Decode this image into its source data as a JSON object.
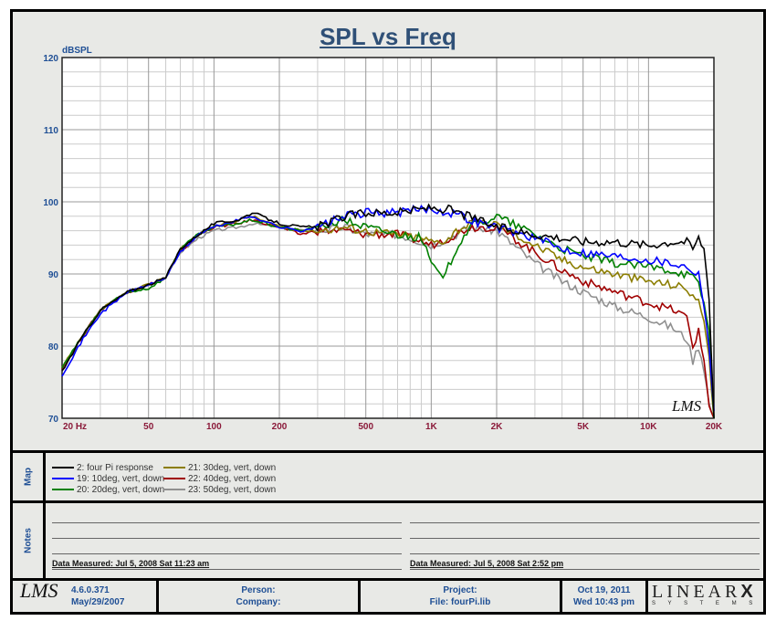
{
  "chart_data": {
    "type": "line",
    "title": "SPL vs Freq",
    "ylabel": "dBSPL",
    "xlabel": "",
    "xscale": "log",
    "xlim": [
      20,
      20000
    ],
    "ylim": [
      70,
      120
    ],
    "yticks": [
      "120",
      "110",
      "100",
      "90",
      "80",
      "70"
    ],
    "ytick_values": [
      120,
      110,
      100,
      90,
      80,
      70
    ],
    "xticks": [
      "20  Hz",
      "50",
      "100",
      "200",
      "500",
      "1K",
      "2K",
      "5K",
      "10K",
      "20K"
    ],
    "xtick_values": [
      20,
      50,
      100,
      200,
      500,
      1000,
      2000,
      5000,
      10000,
      20000
    ],
    "grid": true,
    "watermark": "LMS",
    "x": [
      20,
      25,
      30,
      40,
      50,
      60,
      70,
      85,
      100,
      130,
      150,
      200,
      250,
      300,
      400,
      500,
      700,
      900,
      1000,
      1100,
      1200,
      1300,
      1500,
      2000,
      3000,
      4000,
      5000,
      7000,
      10000,
      13000,
      15000,
      16000,
      17000,
      18000,
      19000,
      20000
    ],
    "series": [
      {
        "name": "2: four Pi response",
        "color": "#000000",
        "values": [
          76.5,
          81.5,
          85,
          87.5,
          88.5,
          89.5,
          93.5,
          95.5,
          97,
          97.5,
          98.5,
          97,
          96.5,
          96.5,
          98,
          98.5,
          98.5,
          99,
          99.2,
          99,
          99,
          98.5,
          98,
          96.5,
          95.5,
          95,
          94.5,
          94.5,
          94,
          94.5,
          94.5,
          93.5,
          95,
          93.5,
          87,
          70
        ]
      },
      {
        "name": "19: 10deg, vert, down",
        "color": "#0000ff",
        "values": [
          76,
          81,
          84.5,
          87.5,
          88.5,
          89.5,
          93,
          95.5,
          96.5,
          97.5,
          98,
          96.5,
          96,
          96.5,
          98,
          98.5,
          98.5,
          99,
          99,
          98.8,
          98.5,
          98.5,
          97.5,
          96.5,
          95,
          93.5,
          93,
          92.5,
          92,
          91.5,
          91,
          90.5,
          90,
          86,
          80,
          71
        ]
      },
      {
        "name": "20: 20deg, vert, down",
        "color": "#008000",
        "values": [
          77,
          81.5,
          85,
          87.5,
          88,
          89.5,
          93.5,
          95.5,
          96.5,
          97,
          97.5,
          96.5,
          96,
          96.5,
          97.5,
          96.5,
          95.5,
          95,
          91.5,
          89.5,
          91,
          93.5,
          96.5,
          98,
          95.5,
          93.5,
          92.5,
          91.5,
          91,
          90.5,
          90,
          89.5,
          88.5,
          86,
          82,
          70
        ]
      },
      {
        "name": "21: 30deg, vert, down",
        "color": "#8b7d00",
        "values": [
          77,
          81.5,
          85,
          87.5,
          88.5,
          89.5,
          93.5,
          95.5,
          96.5,
          97.5,
          98,
          96.5,
          96,
          96,
          96.5,
          96,
          95.5,
          95,
          94.5,
          94.5,
          95,
          96,
          97,
          97,
          94,
          92,
          91,
          90,
          89,
          88.5,
          88,
          87,
          86,
          84,
          78,
          70
        ]
      },
      {
        "name": "22: 40deg, vert, down",
        "color": "#a00000",
        "values": [
          77,
          81.5,
          85,
          87.5,
          88.5,
          89.5,
          93,
          95.5,
          96.5,
          97,
          97.5,
          96.5,
          95.5,
          96,
          96,
          95.5,
          95.5,
          94.5,
          94,
          94.5,
          95,
          95.5,
          96.5,
          96.5,
          93,
          90.5,
          89,
          87.5,
          86,
          85,
          84,
          80,
          82,
          78,
          72,
          70
        ]
      },
      {
        "name": "23: 50deg, vert, down",
        "color": "#909090",
        "values": [
          77,
          81.5,
          85,
          87.5,
          88.5,
          89.5,
          93,
          95,
          96,
          96.5,
          97,
          96.5,
          96,
          96,
          96.5,
          95.5,
          95.5,
          94.5,
          94,
          94.5,
          95,
          95.5,
          96.5,
          96,
          91.5,
          89,
          87.5,
          85.5,
          84,
          82.5,
          81,
          78,
          80,
          77,
          72,
          70
        ]
      }
    ]
  },
  "map": {
    "label": "Map"
  },
  "notes": {
    "label": "Notes",
    "left_measured": "Data Measured: Jul  5, 2008  Sat 11:23 am",
    "right_measured": "Data Measured: Jul  5, 2008  Sat  2:52 pm"
  },
  "footer": {
    "logo": "LMS",
    "version": "4.6.0.371",
    "build_date": "May/29/2007",
    "person": "Person:",
    "company": "Company:",
    "project": "Project:",
    "file": "File: fourPi.lib",
    "date": "Oct 19, 2011",
    "time": "Wed 10:43 pm",
    "brand": "LINEAR",
    "brand_x": "X",
    "brand_sub": "S Y S T E M S"
  }
}
